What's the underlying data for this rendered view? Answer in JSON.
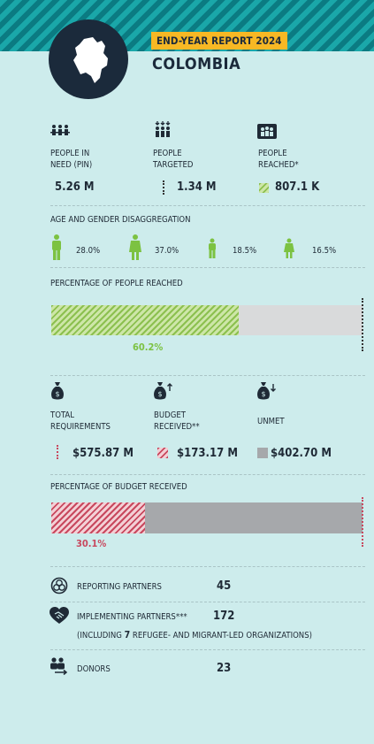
{
  "header": {
    "badge": "END-YEAR REPORT 2024",
    "country": "COLOMBIA"
  },
  "people": {
    "in_need": {
      "label_l1": "PEOPLE IN",
      "label_l2": "NEED (PIN)",
      "value": "5.26 M"
    },
    "targeted": {
      "label_l1": "PEOPLE",
      "label_l2": "TARGETED",
      "value": "1.34 M"
    },
    "reached": {
      "label_l1": "PEOPLE",
      "label_l2": "REACHED*",
      "value": "807.1 K"
    }
  },
  "age_gender": {
    "title": "AGE AND GENDER DISAGGREGATION",
    "items": [
      {
        "icon": "man-icon",
        "value": "28.0%"
      },
      {
        "icon": "woman-icon",
        "value": "37.0%"
      },
      {
        "icon": "boy-icon",
        "value": "18.5%"
      },
      {
        "icon": "girl-icon",
        "value": "16.5%"
      }
    ]
  },
  "people_reached_bar": {
    "title": "PERCENTAGE OF PEOPLE REACHED",
    "percent_label": "60.2%",
    "fraction": 0.602
  },
  "budget": {
    "total": {
      "label_l1": "TOTAL",
      "label_l2": "REQUIREMENTS",
      "value": "$575.87 M"
    },
    "received": {
      "label_l1": "BUDGET",
      "label_l2": "RECEIVED**",
      "value": "$173.17 M"
    },
    "unmet": {
      "label": "UNMET",
      "value": "$402.70 M"
    }
  },
  "budget_bar": {
    "title": "PERCENTAGE OF BUDGET RECEIVED",
    "percent_label": "30.1%",
    "fraction": 0.301
  },
  "partners": {
    "reporting": {
      "label": "REPORTING PARTNERS",
      "value": "45"
    },
    "implementing": {
      "label": "IMPLEMENTING PARTNERS***",
      "value": "172",
      "note_pre": "(INCLUDING ",
      "note_num": "7",
      "note_post": " REFUGEE- AND MIGRANT-LED ORGANIZATIONS)"
    },
    "donors": {
      "label": "DONORS",
      "value": "23"
    }
  },
  "colors": {
    "teal": "#0f8a90",
    "navy": "#1b2a3b",
    "badge": "#f7b824",
    "green": "#8cc04f",
    "red": "#c8485e",
    "grey": "#a6a8ab"
  }
}
